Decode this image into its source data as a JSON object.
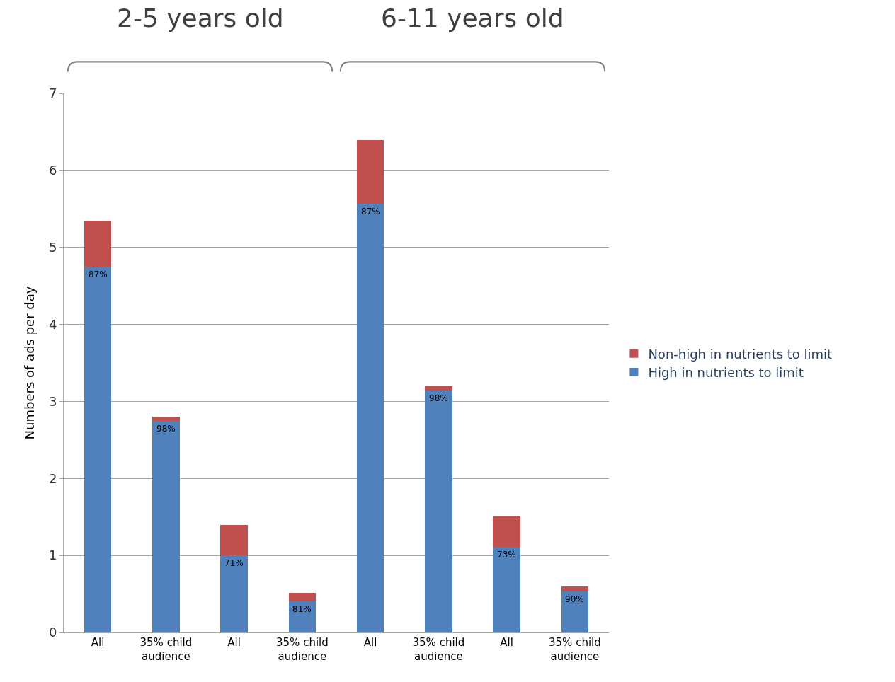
{
  "chart_data": {
    "type": "bar",
    "stacked": true,
    "ylabel": "Numbers of ads per day",
    "annotations": [
      "2-5 years old",
      "6-11 years old",
      "87%",
      "98%",
      "71%",
      "81%",
      "87%",
      "98%",
      "73%",
      "90%"
    ],
    "categories": [
      "All",
      "35% child audience",
      "All",
      "35% child audience",
      "All",
      "35% child audience",
      "All",
      "35% child audience"
    ],
    "series": [
      {
        "name": "High in nutrients to limit",
        "color": "#4f81bd",
        "values": [
          4.75,
          2.75,
          1.0,
          0.4,
          5.57,
          3.14,
          1.11,
          0.53
        ]
      },
      {
        "name": "Non-high in nutrients to limit",
        "color": "#c0504d",
        "values": [
          0.6,
          0.05,
          0.4,
          0.11,
          0.82,
          0.06,
          0.41,
          0.07
        ]
      }
    ],
    "ylim": [
      0,
      7
    ],
    "yticks": [
      0,
      1,
      2,
      3,
      4,
      5,
      6,
      7
    ],
    "grid": "y",
    "legend": "right"
  }
}
